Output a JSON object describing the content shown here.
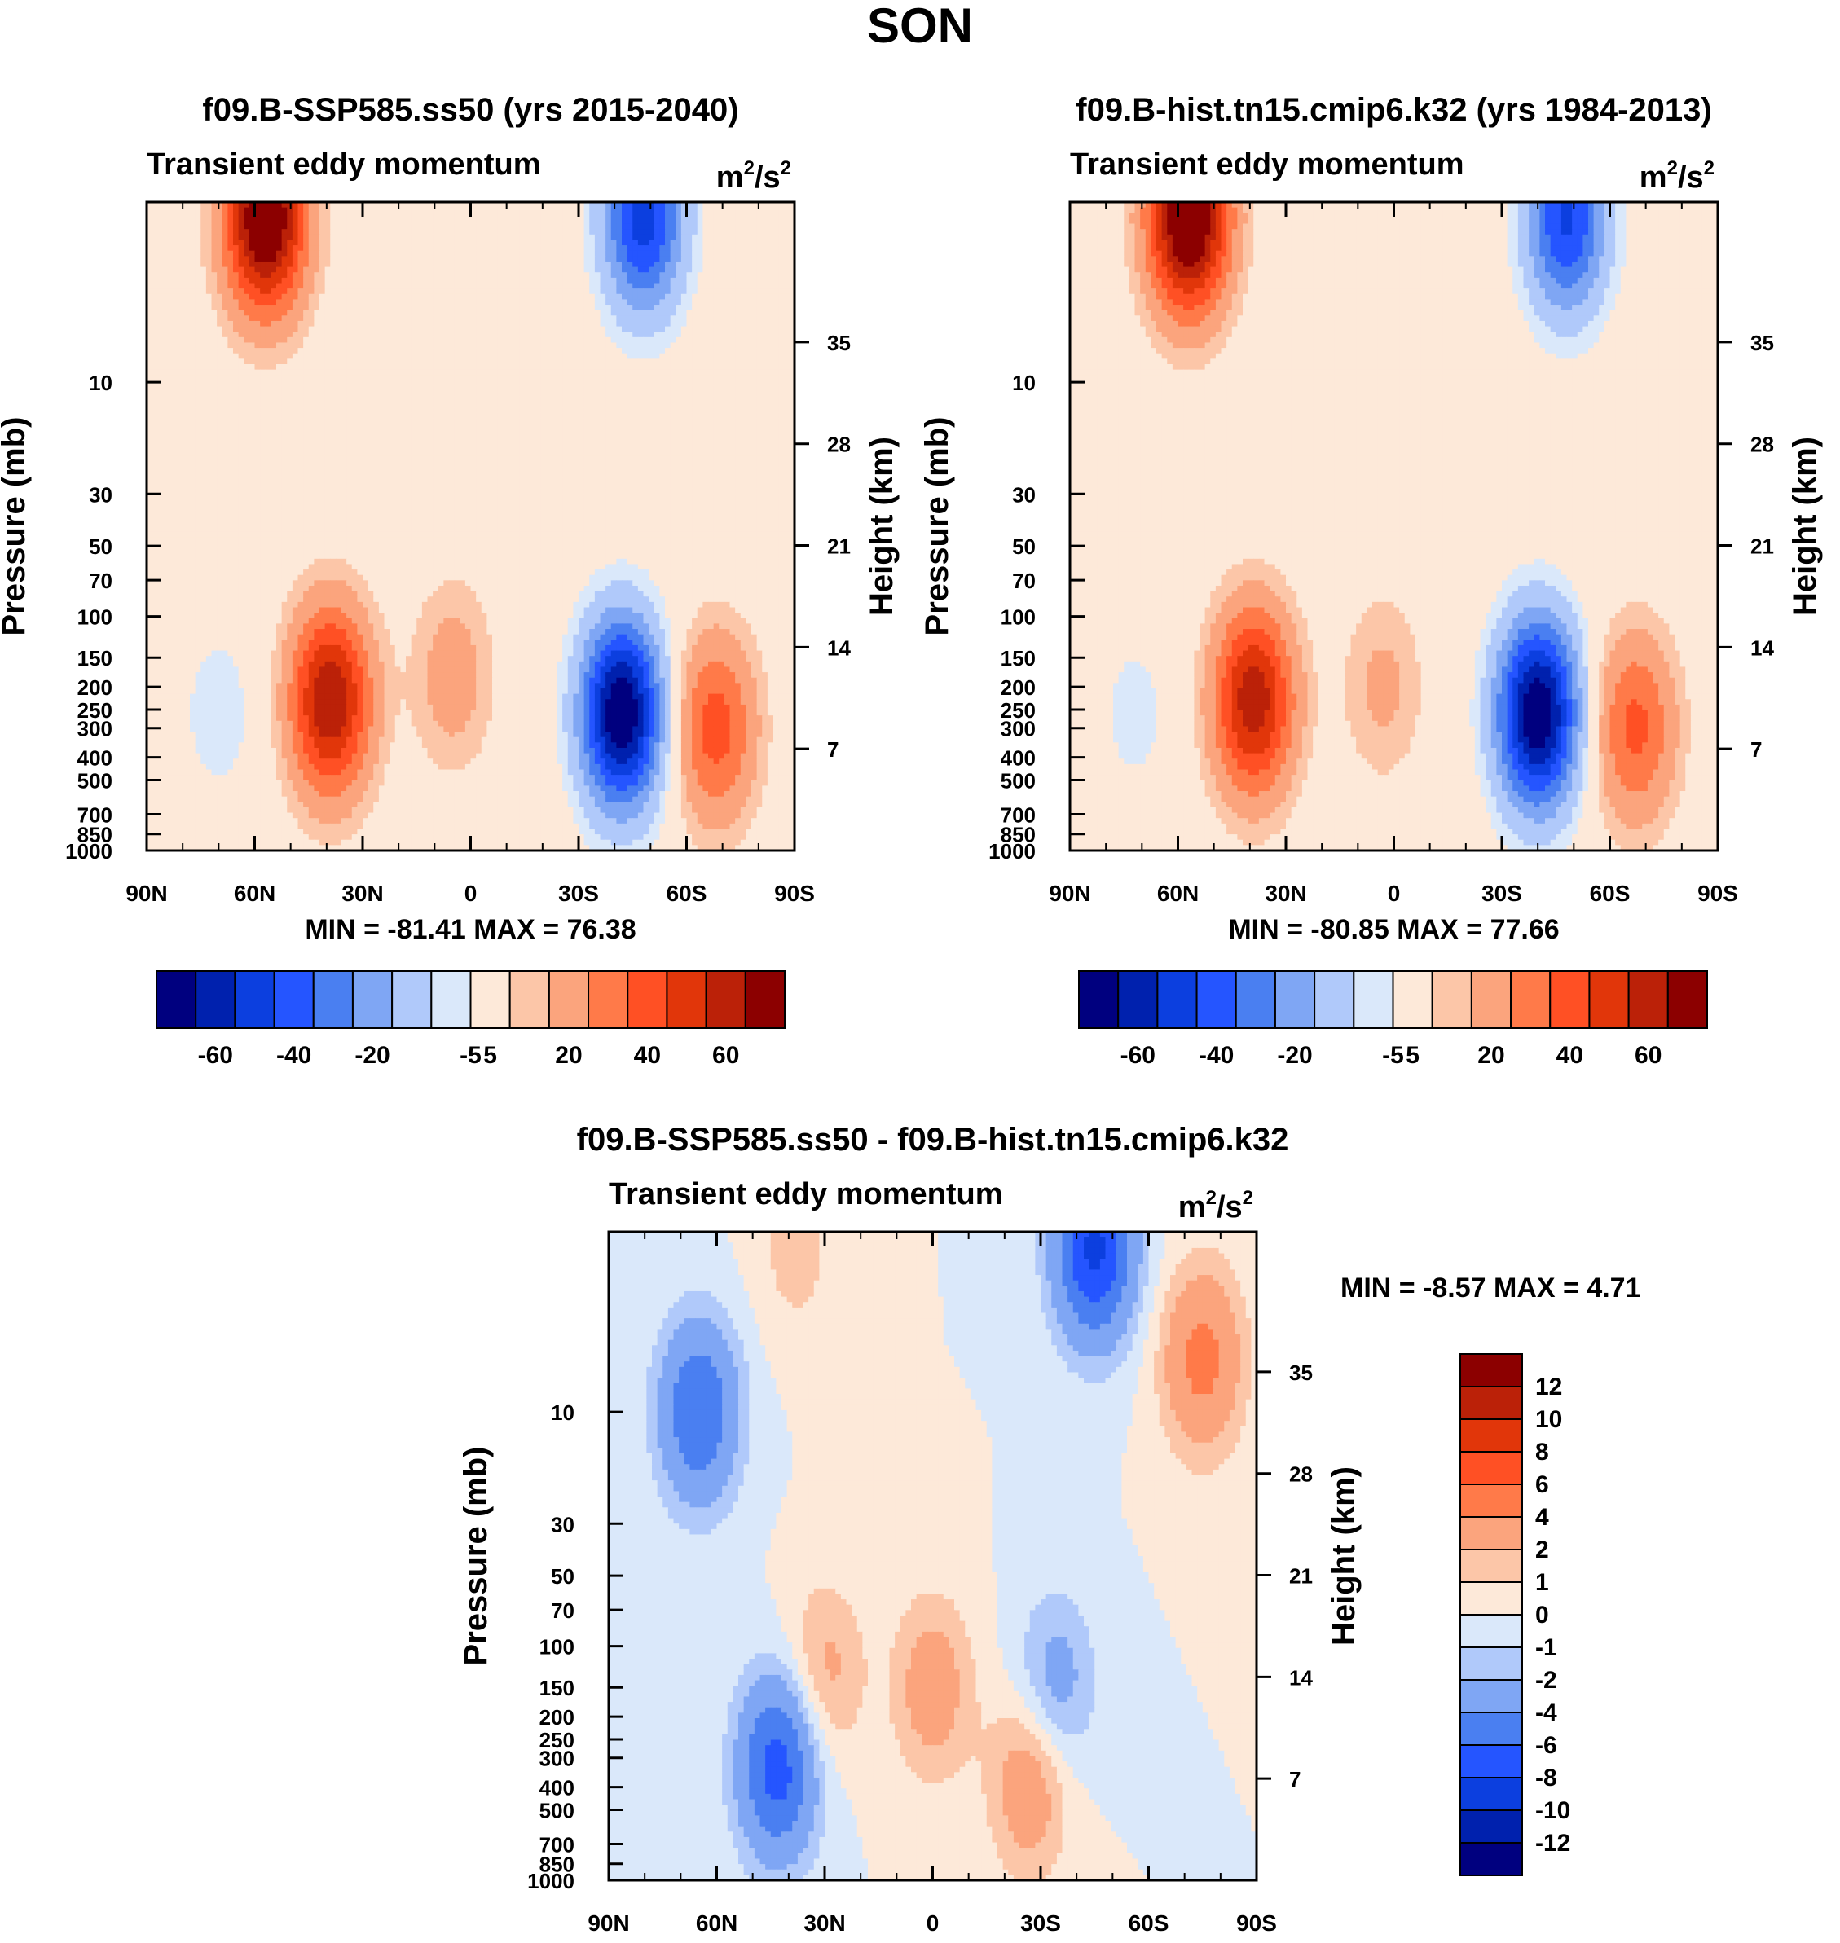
{
  "page_title": "SON",
  "chart_data": [
    {
      "type": "heatmap",
      "title": "f09.B-SSP585.ss50 (yrs 2015-2040)",
      "subtitle": "Transient eddy momentum",
      "units_label": "m",
      "units_sup1": "2",
      "units_mid": "/s",
      "units_sup2": "2",
      "xlabel": "",
      "ylabel": "Pressure (mb)",
      "y2label": "Height (km)",
      "x_ticks": [
        "90N",
        "60N",
        "30N",
        "0",
        "30S",
        "60S",
        "90S"
      ],
      "y_ticks": [
        "10",
        "30",
        "50",
        "70",
        "100",
        "150",
        "200",
        "250",
        "300",
        "400",
        "500",
        "700",
        "850",
        "1000"
      ],
      "y2_ticks": [
        "35",
        "28",
        "21",
        "14",
        "7"
      ],
      "stats": "MIN = -81.41  MAX =  76.38",
      "colorbar_labels": [
        "-60",
        "-40",
        "-20",
        "-5",
        "5",
        "20",
        "40",
        "60"
      ],
      "features": [
        {
          "lat": 57,
          "p": 2,
          "value": 76
        },
        {
          "lat": 39,
          "p": 230,
          "value": 60
        },
        {
          "lat": -42,
          "p": 260,
          "value": -81
        },
        {
          "lat": -48,
          "p": 2,
          "value": -55
        },
        {
          "lat": -68,
          "p": 300,
          "value": 35
        },
        {
          "lat": 5,
          "p": 180,
          "value": 15
        },
        {
          "lat": 70,
          "p": 260,
          "value": -8
        }
      ]
    },
    {
      "type": "heatmap",
      "title": "f09.B-hist.tn15.cmip6.k32 (yrs 1984-2013)",
      "subtitle": "Transient eddy momentum",
      "units_label": "m",
      "units_sup1": "2",
      "units_mid": "/s",
      "units_sup2": "2",
      "xlabel": "",
      "ylabel": "Pressure (mb)",
      "y2label": "Height (km)",
      "x_ticks": [
        "90N",
        "60N",
        "30N",
        "0",
        "30S",
        "60S",
        "90S"
      ],
      "y_ticks": [
        "10",
        "30",
        "50",
        "70",
        "100",
        "150",
        "200",
        "250",
        "300",
        "400",
        "500",
        "700",
        "850",
        "1000"
      ],
      "y2_ticks": [
        "35",
        "28",
        "21",
        "14",
        "7"
      ],
      "stats": "MIN = -80.85  MAX =  77.66",
      "colorbar_labels": [
        "-60",
        "-40",
        "-20",
        "-5",
        "5",
        "20",
        "40",
        "60"
      ],
      "features": [
        {
          "lat": 57,
          "p": 2,
          "value": 78
        },
        {
          "lat": 39,
          "p": 230,
          "value": 57
        },
        {
          "lat": -40,
          "p": 260,
          "value": -81
        },
        {
          "lat": -48,
          "p": 2,
          "value": -52
        },
        {
          "lat": -67,
          "p": 300,
          "value": 33
        },
        {
          "lat": 3,
          "p": 200,
          "value": 12
        },
        {
          "lat": 72,
          "p": 260,
          "value": -7
        }
      ]
    },
    {
      "type": "heatmap",
      "title": "f09.B-SSP585.ss50 - f09.B-hist.tn15.cmip6.k32",
      "subtitle": "Transient eddy momentum",
      "units_label": "m",
      "units_sup1": "2",
      "units_mid": "/s",
      "units_sup2": "2",
      "xlabel": "",
      "ylabel": "Pressure (mb)",
      "y2label": "Height (km)",
      "x_ticks": [
        "90N",
        "60N",
        "30N",
        "0",
        "30S",
        "60S",
        "90S"
      ],
      "y_ticks": [
        "10",
        "30",
        "50",
        "70",
        "100",
        "150",
        "200",
        "250",
        "300",
        "400",
        "500",
        "700",
        "850",
        "1000"
      ],
      "y2_ticks": [
        "35",
        "28",
        "21",
        "14",
        "7"
      ],
      "stats": "MIN =  -8.57  MAX =   4.71",
      "colorbar_labels": [
        "12",
        "10",
        "8",
        "6",
        "4",
        "2",
        "1",
        "0",
        "-1",
        "-2",
        "-4",
        "-6",
        "-8",
        "-10",
        "-12"
      ],
      "features": [
        {
          "lat": 65,
          "p": 10,
          "value": -6
        },
        {
          "lat": 43,
          "p": 330,
          "value": -7
        },
        {
          "lat": -45,
          "p": 2,
          "value": -8.5
        },
        {
          "lat": -34,
          "p": 150,
          "value": -3
        },
        {
          "lat": -75,
          "p": 6,
          "value": 4.7
        },
        {
          "lat": -27,
          "p": 380,
          "value": 3.5
        },
        {
          "lat": 0,
          "p": 150,
          "value": 3
        },
        {
          "lat": 30,
          "p": 130,
          "value": 2.5
        },
        {
          "lat": 38,
          "p": 2,
          "value": 1.5
        }
      ]
    }
  ],
  "colors": {
    "panel_scale": [
      "#00007f",
      "#0021ae",
      "#0c3fdf",
      "#2555ff",
      "#4a7ff1",
      "#7fa6f4",
      "#b0c9fa",
      "#dae8fa",
      "#fde9d9",
      "#fcc6a8",
      "#fba47d",
      "#ff7a49",
      "#ff5024",
      "#e1360a",
      "#bb2108",
      "#8c0000"
    ],
    "diff_scale": [
      "#00007f",
      "#0021ae",
      "#0c3fdf",
      "#2555ff",
      "#4a7ff1",
      "#7fa6f4",
      "#b0c9fa",
      "#dae8fa",
      "#fde9d9",
      "#fcc6a8",
      "#fba47d",
      "#ff7a49",
      "#ff5024",
      "#e1360a",
      "#bb2108",
      "#8c0000"
    ]
  }
}
